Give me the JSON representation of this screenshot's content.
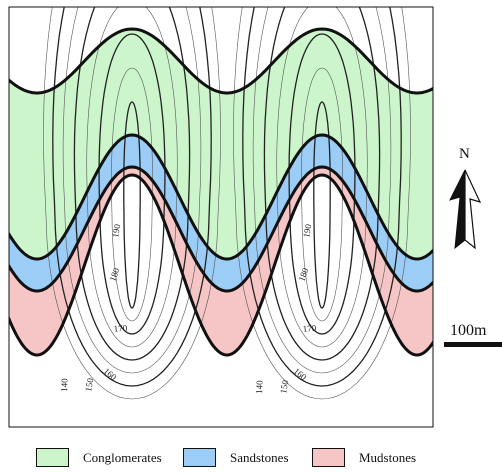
{
  "map": {
    "contour_labels": [
      "190",
      "180",
      "170",
      "160",
      "150",
      "140"
    ],
    "contour_values": [
      190,
      180,
      170,
      160,
      150,
      140
    ]
  },
  "units": [
    {
      "key": "conglomerates",
      "name": "Conglomerates",
      "color": "#ccf5cc"
    },
    {
      "key": "sandstones",
      "name": "Sandstones",
      "color": "#9ccdf6"
    },
    {
      "key": "mudstones",
      "name": "Mudstones",
      "color": "#f6c6c6"
    }
  ],
  "north_arrow": {
    "label": "N"
  },
  "scale_bar": {
    "label": "100m"
  }
}
